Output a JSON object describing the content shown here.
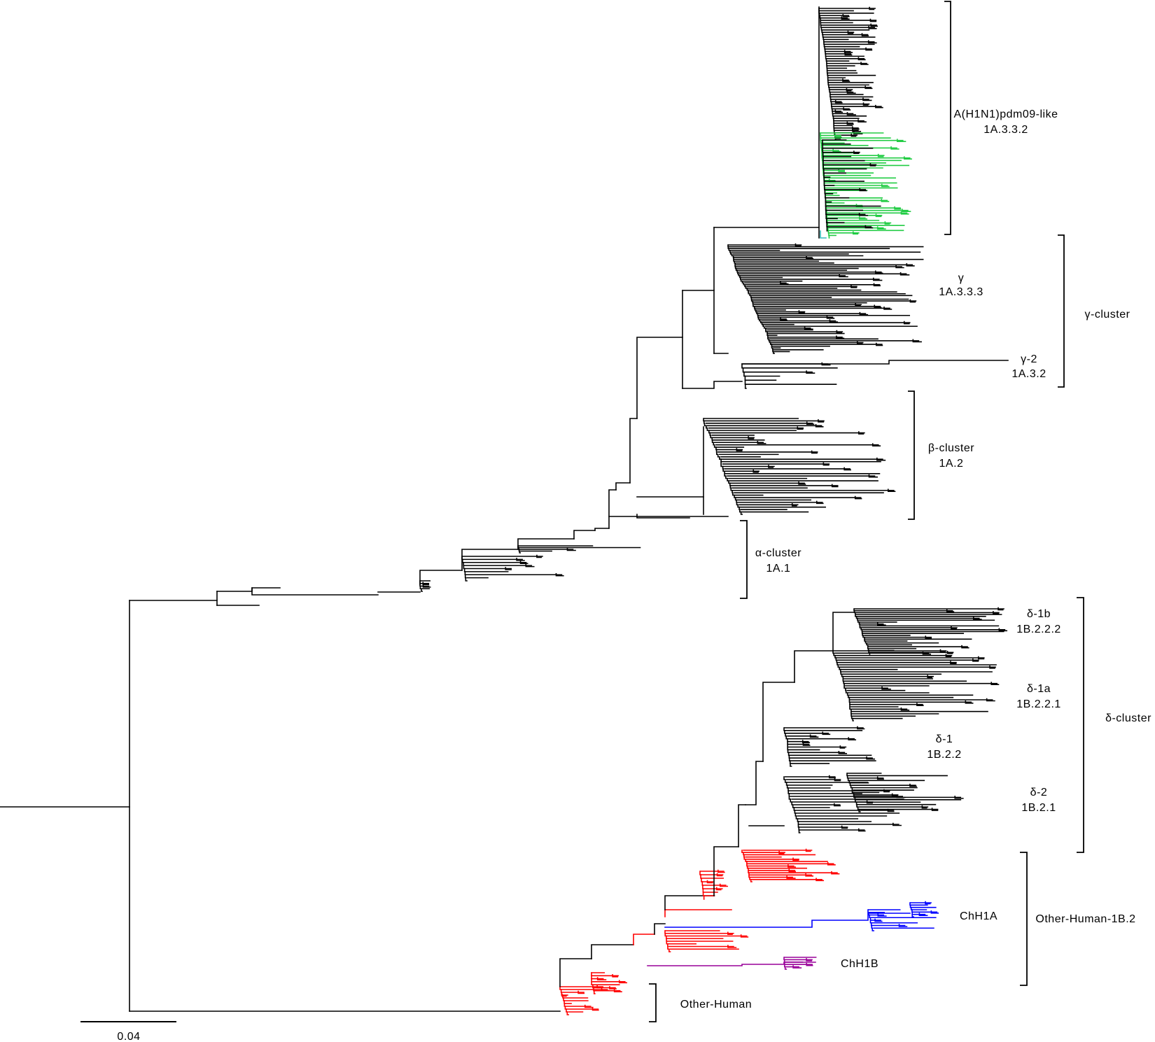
{
  "figure": {
    "type": "phylogenetic-tree",
    "scale_bar_label": "0.04",
    "branch_colors": {
      "default": "#000000",
      "pdm09_highlight": "#22cc44",
      "pdm09_base": "#33bbbb",
      "other_human": "#ff0000",
      "chh1a": "#0000ff",
      "chh1b": "#990099"
    },
    "clades": {
      "pdm09": {
        "line1": "A(H1N1)pdm09-like",
        "line2": "1A.3.3.2"
      },
      "gamma": {
        "line1": "γ",
        "line2": "1A.3.3.3"
      },
      "gamma2": {
        "line1": "γ-2",
        "line2": "1A.3.2"
      },
      "gamma_cluster": {
        "line1": "γ-cluster"
      },
      "beta": {
        "line1": "β-cluster",
        "line2": "1A.2"
      },
      "alpha": {
        "line1": "α-cluster",
        "line2": "1A.1"
      },
      "delta1b": {
        "line1": "δ-1b",
        "line2": "1B.2.2.2"
      },
      "delta1a": {
        "line1": "δ-1a",
        "line2": "1B.2.2.1"
      },
      "delta1": {
        "line1": "δ-1",
        "line2": "1B.2.2"
      },
      "delta2": {
        "line1": "δ-2",
        "line2": "1B.2.1"
      },
      "delta_cluster": {
        "line1": "δ-cluster"
      },
      "chh1a": {
        "line1": "ChH1A"
      },
      "chh1b": {
        "line1": "ChH1B"
      },
      "other_human_1b2": {
        "line1": "Other-Human-1B.2"
      },
      "other_human": {
        "line1": "Other-Human"
      }
    }
  }
}
